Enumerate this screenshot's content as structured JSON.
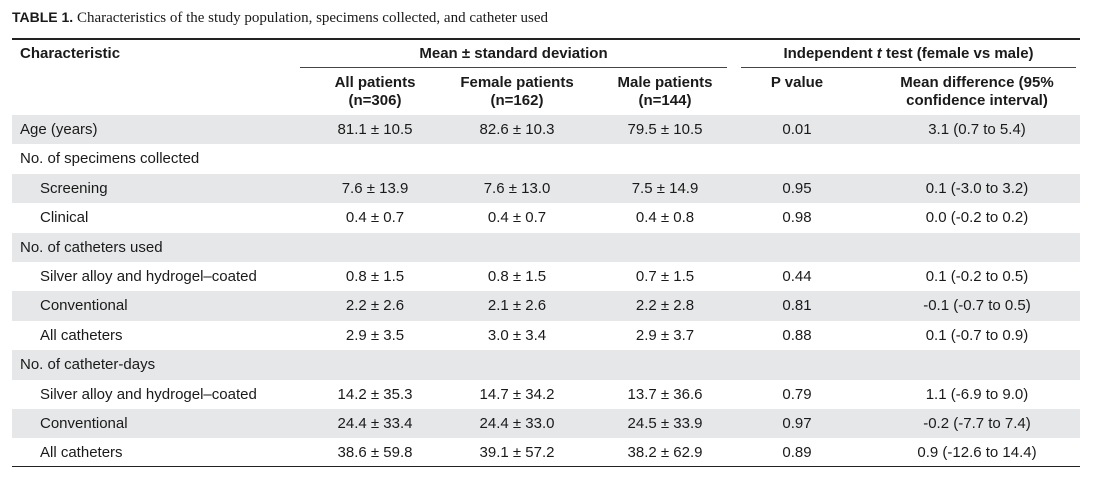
{
  "caption": {
    "label": "TABLE 1.",
    "text": "Characteristics of the study population, specimens collected, and catheter used"
  },
  "header": {
    "characteristic": "Characteristic",
    "group_mean": "Mean ± standard deviation",
    "group_test_prefix": "Independent ",
    "group_test_t": "t",
    "group_test_suffix": " test (female vs male)",
    "all_patients": "All patients",
    "all_patients_n": "(n=306)",
    "female_patients": "Female patients",
    "female_patients_n": "(n=162)",
    "male_patients": "Male patients",
    "male_patients_n": "(n=144)",
    "p_value": "P value",
    "mean_diff_line1": "Mean difference (95%",
    "mean_diff_line2": "confidence interval)"
  },
  "rows": [
    {
      "label": "Age (years)",
      "indent": false,
      "shade": true,
      "all": "81.1 ± 10.5",
      "female": "82.6 ± 10.3",
      "male": "79.5 ± 10.5",
      "p": "0.01",
      "diff": "3.1 (0.7 to 5.4)"
    },
    {
      "label": "No. of specimens collected",
      "indent": false,
      "shade": false,
      "all": "",
      "female": "",
      "male": "",
      "p": "",
      "diff": ""
    },
    {
      "label": "Screening",
      "indent": true,
      "shade": true,
      "all": "7.6 ± 13.9",
      "female": "7.6 ± 13.0",
      "male": "7.5 ± 14.9",
      "p": "0.95",
      "diff": "0.1 (-3.0 to 3.2)"
    },
    {
      "label": "Clinical",
      "indent": true,
      "shade": false,
      "all": "0.4 ± 0.7",
      "female": "0.4 ± 0.7",
      "male": "0.4 ± 0.8",
      "p": "0.98",
      "diff": "0.0 (-0.2 to 0.2)"
    },
    {
      "label": "No. of catheters used",
      "indent": false,
      "shade": true,
      "all": "",
      "female": "",
      "male": "",
      "p": "",
      "diff": ""
    },
    {
      "label": "Silver alloy and hydrogel–coated",
      "indent": true,
      "shade": false,
      "all": "0.8 ± 1.5",
      "female": "0.8 ± 1.5",
      "male": "0.7 ± 1.5",
      "p": "0.44",
      "diff": "0.1 (-0.2 to 0.5)"
    },
    {
      "label": "Conventional",
      "indent": true,
      "shade": true,
      "all": "2.2 ± 2.6",
      "female": "2.1 ± 2.6",
      "male": "2.2 ± 2.8",
      "p": "0.81",
      "diff": "-0.1 (-0.7 to 0.5)"
    },
    {
      "label": "All catheters",
      "indent": true,
      "shade": false,
      "all": "2.9 ± 3.5",
      "female": "3.0 ± 3.4",
      "male": "2.9 ± 3.7",
      "p": "0.88",
      "diff": "0.1 (-0.7 to 0.9)"
    },
    {
      "label": "No. of catheter-days",
      "indent": false,
      "shade": true,
      "all": "",
      "female": "",
      "male": "",
      "p": "",
      "diff": ""
    },
    {
      "label": "Silver alloy and hydrogel–coated",
      "indent": true,
      "shade": false,
      "all": "14.2 ± 35.3",
      "female": "14.7 ± 34.2",
      "male": "13.7 ± 36.6",
      "p": "0.79",
      "diff": "1.1 (-6.9 to 9.0)"
    },
    {
      "label": "Conventional",
      "indent": true,
      "shade": true,
      "all": "24.4 ± 33.4",
      "female": "24.4 ± 33.0",
      "male": "24.5 ± 33.9",
      "p": "0.97",
      "diff": "-0.2 (-7.7 to 7.4)"
    },
    {
      "label": "All catheters",
      "indent": true,
      "shade": false,
      "all": "38.6 ± 59.8",
      "female": "39.1 ± 57.2",
      "male": "38.2 ± 62.9",
      "p": "0.89",
      "diff": "0.9 (-12.6 to 14.4)"
    }
  ],
  "colors": {
    "shade": "#e6e7e8",
    "text": "#1a1a1a",
    "rule": "#222222"
  }
}
